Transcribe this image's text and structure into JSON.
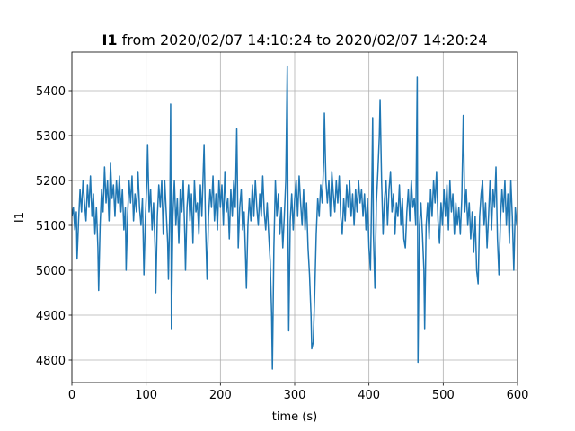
{
  "chart_data": {
    "type": "line",
    "title_parts": [
      "I1",
      " from 2020/02/07 14:10:24 to 2020/02/07 14:20:24"
    ],
    "x_label": "time (s)",
    "y_label": "I1",
    "color": "#1f77b4",
    "grid": true,
    "xlim": [
      0,
      600
    ],
    "xticks": [
      0,
      100,
      200,
      300,
      400,
      500,
      600
    ],
    "ylim": [
      4750,
      5486
    ],
    "yticks": [
      4800,
      4900,
      5000,
      5100,
      5200,
      5300,
      5400
    ],
    "x": [
      0,
      2,
      4,
      6,
      7,
      9,
      11,
      13,
      15,
      17,
      19,
      21,
      23,
      25,
      27,
      29,
      31,
      33,
      35,
      36,
      38,
      40,
      42,
      44,
      46,
      48,
      50,
      52,
      54,
      56,
      58,
      60,
      62,
      64,
      66,
      68,
      70,
      72,
      73,
      75,
      77,
      79,
      81,
      83,
      85,
      87,
      89,
      91,
      93,
      95,
      97,
      99,
      101,
      102,
      104,
      106,
      108,
      110,
      112,
      113,
      115,
      117,
      119,
      121,
      123,
      125,
      127,
      129,
      130,
      132,
      133,
      134,
      136,
      138,
      140,
      142,
      144,
      146,
      148,
      150,
      152,
      153,
      155,
      157,
      159,
      161,
      163,
      165,
      167,
      169,
      171,
      173,
      175,
      178,
      180,
      182,
      184,
      186,
      188,
      190,
      192,
      194,
      196,
      198,
      200,
      202,
      204,
      206,
      208,
      210,
      212,
      214,
      216,
      218,
      220,
      222,
      224,
      226,
      228,
      230,
      232,
      234,
      235,
      237,
      239,
      241,
      243,
      245,
      247,
      249,
      251,
      253,
      255,
      257,
      259,
      261,
      263,
      265,
      267,
      269,
      270,
      272,
      274,
      276,
      278,
      280,
      282,
      284,
      286,
      288,
      290,
      291,
      292,
      294,
      296,
      298,
      300,
      302,
      304,
      306,
      308,
      310,
      312,
      314,
      316,
      318,
      320,
      322,
      323,
      325,
      327,
      329,
      331,
      333,
      335,
      337,
      339,
      340,
      342,
      344,
      346,
      348,
      350,
      352,
      354,
      356,
      358,
      360,
      362,
      364,
      366,
      368,
      370,
      372,
      374,
      376,
      378,
      380,
      382,
      384,
      386,
      388,
      390,
      392,
      394,
      396,
      398,
      400,
      402,
      404,
      405,
      406,
      408,
      410,
      412,
      414,
      415,
      417,
      419,
      421,
      423,
      425,
      427,
      429,
      431,
      433,
      435,
      437,
      439,
      441,
      443,
      445,
      447,
      449,
      451,
      453,
      455,
      457,
      459,
      461,
      463,
      465,
      466,
      468,
      470,
      472,
      474,
      475,
      477,
      479,
      481,
      483,
      485,
      487,
      489,
      491,
      493,
      495,
      497,
      499,
      501,
      503,
      505,
      507,
      509,
      511,
      513,
      515,
      517,
      519,
      521,
      523,
      525,
      527,
      529,
      531,
      533,
      535,
      537,
      539,
      541,
      543,
      545,
      547,
      549,
      551,
      553,
      555,
      557,
      559,
      561,
      563,
      565,
      567,
      569,
      571,
      573,
      575,
      577,
      579,
      581,
      583,
      585,
      587,
      589,
      591,
      593,
      595,
      597,
      599,
      600
    ],
    "values": [
      5120,
      5140,
      5090,
      5130,
      5025,
      5110,
      5180,
      5130,
      5200,
      5150,
      5110,
      5190,
      5140,
      5210,
      5120,
      5170,
      5080,
      5140,
      5050,
      4955,
      5100,
      5180,
      5130,
      5230,
      5150,
      5200,
      5110,
      5240,
      5160,
      5190,
      5120,
      5200,
      5150,
      5210,
      5130,
      5180,
      5090,
      5140,
      5000,
      5120,
      5200,
      5150,
      5210,
      5110,
      5170,
      5130,
      5220,
      5140,
      5100,
      5160,
      4990,
      5120,
      5200,
      5280,
      5130,
      5180,
      5090,
      5150,
      5050,
      4950,
      5120,
      5190,
      5140,
      5200,
      5080,
      5200,
      5130,
      5060,
      4980,
      5150,
      5370,
      4870,
      5120,
      5200,
      5100,
      5160,
      5060,
      5180,
      5130,
      5200,
      5080,
      5000,
      5140,
      5190,
      5110,
      5170,
      5060,
      5200,
      5130,
      5150,
      5080,
      5190,
      5120,
      5280,
      5100,
      4980,
      5120,
      5180,
      5140,
      5210,
      5110,
      5170,
      5090,
      5200,
      5140,
      5190,
      5100,
      5220,
      5130,
      5160,
      5070,
      5180,
      5120,
      5200,
      5140,
      5315,
      5050,
      5140,
      5180,
      5090,
      5130,
      5020,
      4960,
      5100,
      5160,
      5110,
      5190,
      5120,
      5200,
      5140,
      5100,
      5170,
      5120,
      5210,
      5130,
      5090,
      5150,
      5080,
      5020,
      4900,
      4780,
      5050,
      5200,
      5120,
      5170,
      5080,
      5140,
      5050,
      5120,
      5200,
      5455,
      5100,
      4865,
      5110,
      5170,
      5090,
      5160,
      5200,
      5120,
      5210,
      5150,
      5100,
      5180,
      5090,
      5150,
      5050,
      4990,
      4900,
      4825,
      4840,
      4950,
      5080,
      5160,
      5120,
      5190,
      5150,
      5240,
      5350,
      5200,
      5150,
      5200,
      5120,
      5220,
      5170,
      5130,
      5200,
      5150,
      5210,
      5120,
      5080,
      5160,
      5110,
      5190,
      5140,
      5200,
      5120,
      5170,
      5100,
      5180,
      5130,
      5200,
      5150,
      5180,
      5120,
      5170,
      5090,
      5160,
      5050,
      5000,
      5200,
      5340,
      5080,
      4960,
      5150,
      5220,
      5300,
      5380,
      5200,
      5080,
      5160,
      5200,
      5100,
      5180,
      5220,
      5130,
      5170,
      5080,
      5150,
      5120,
      5190,
      5100,
      5160,
      5070,
      5050,
      5130,
      5180,
      5110,
      5200,
      5140,
      5160,
      5100,
      5430,
      4795,
      5100,
      5150,
      5080,
      5000,
      4870,
      5100,
      5150,
      5070,
      5180,
      5120,
      5200,
      5150,
      5220,
      5110,
      5060,
      5150,
      5100,
      5180,
      5120,
      5190,
      5090,
      5200,
      5130,
      5170,
      5080,
      5150,
      5100,
      5140,
      5080,
      5160,
      5345,
      5130,
      5180,
      5100,
      5150,
      5070,
      5130,
      5040,
      5120,
      5000,
      4970,
      5120,
      5170,
      5200,
      5100,
      5150,
      5050,
      5120,
      5200,
      5090,
      5180,
      5140,
      5230,
      5070,
      4990,
      5110,
      5180,
      5130,
      5200,
      5100,
      5170,
      5060,
      5200,
      5120,
      5000,
      5140,
      5100,
      5110
    ]
  }
}
